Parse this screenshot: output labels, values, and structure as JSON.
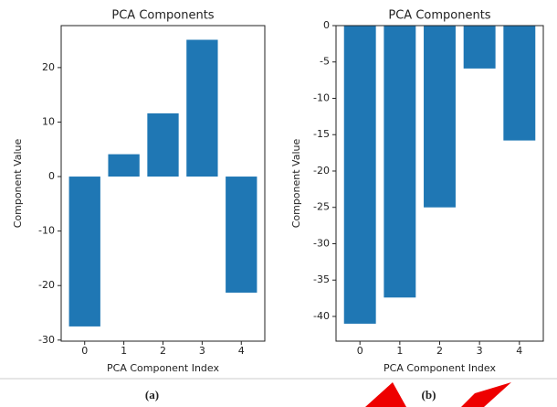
{
  "chart_data": [
    {
      "type": "bar",
      "title": "PCA Components",
      "xlabel": "PCA Component Index",
      "ylabel": "Component Value",
      "caption": "(a)",
      "categories": [
        "0",
        "1",
        "2",
        "3",
        "4"
      ],
      "values": [
        -27.5,
        4.1,
        11.6,
        25.1,
        -21.3
      ],
      "color": "#1f77b4",
      "ylim": [
        -30.2,
        27.7
      ],
      "yticks": [
        -30,
        -20,
        -10,
        0,
        10,
        20
      ],
      "grid": false
    },
    {
      "type": "bar",
      "title": "PCA Components",
      "xlabel": "PCA Component Index",
      "ylabel": "Component Value",
      "caption": "(b)",
      "categories": [
        "0",
        "1",
        "2",
        "3",
        "4"
      ],
      "values": [
        -41.0,
        -37.4,
        -25.0,
        -5.9,
        -15.8
      ],
      "color": "#1f77b4",
      "ylim": [
        -43.4,
        0
      ],
      "yticks": [
        -40,
        -35,
        -30,
        -25,
        -20,
        -15,
        -10,
        -5,
        0
      ],
      "grid": false
    }
  ]
}
